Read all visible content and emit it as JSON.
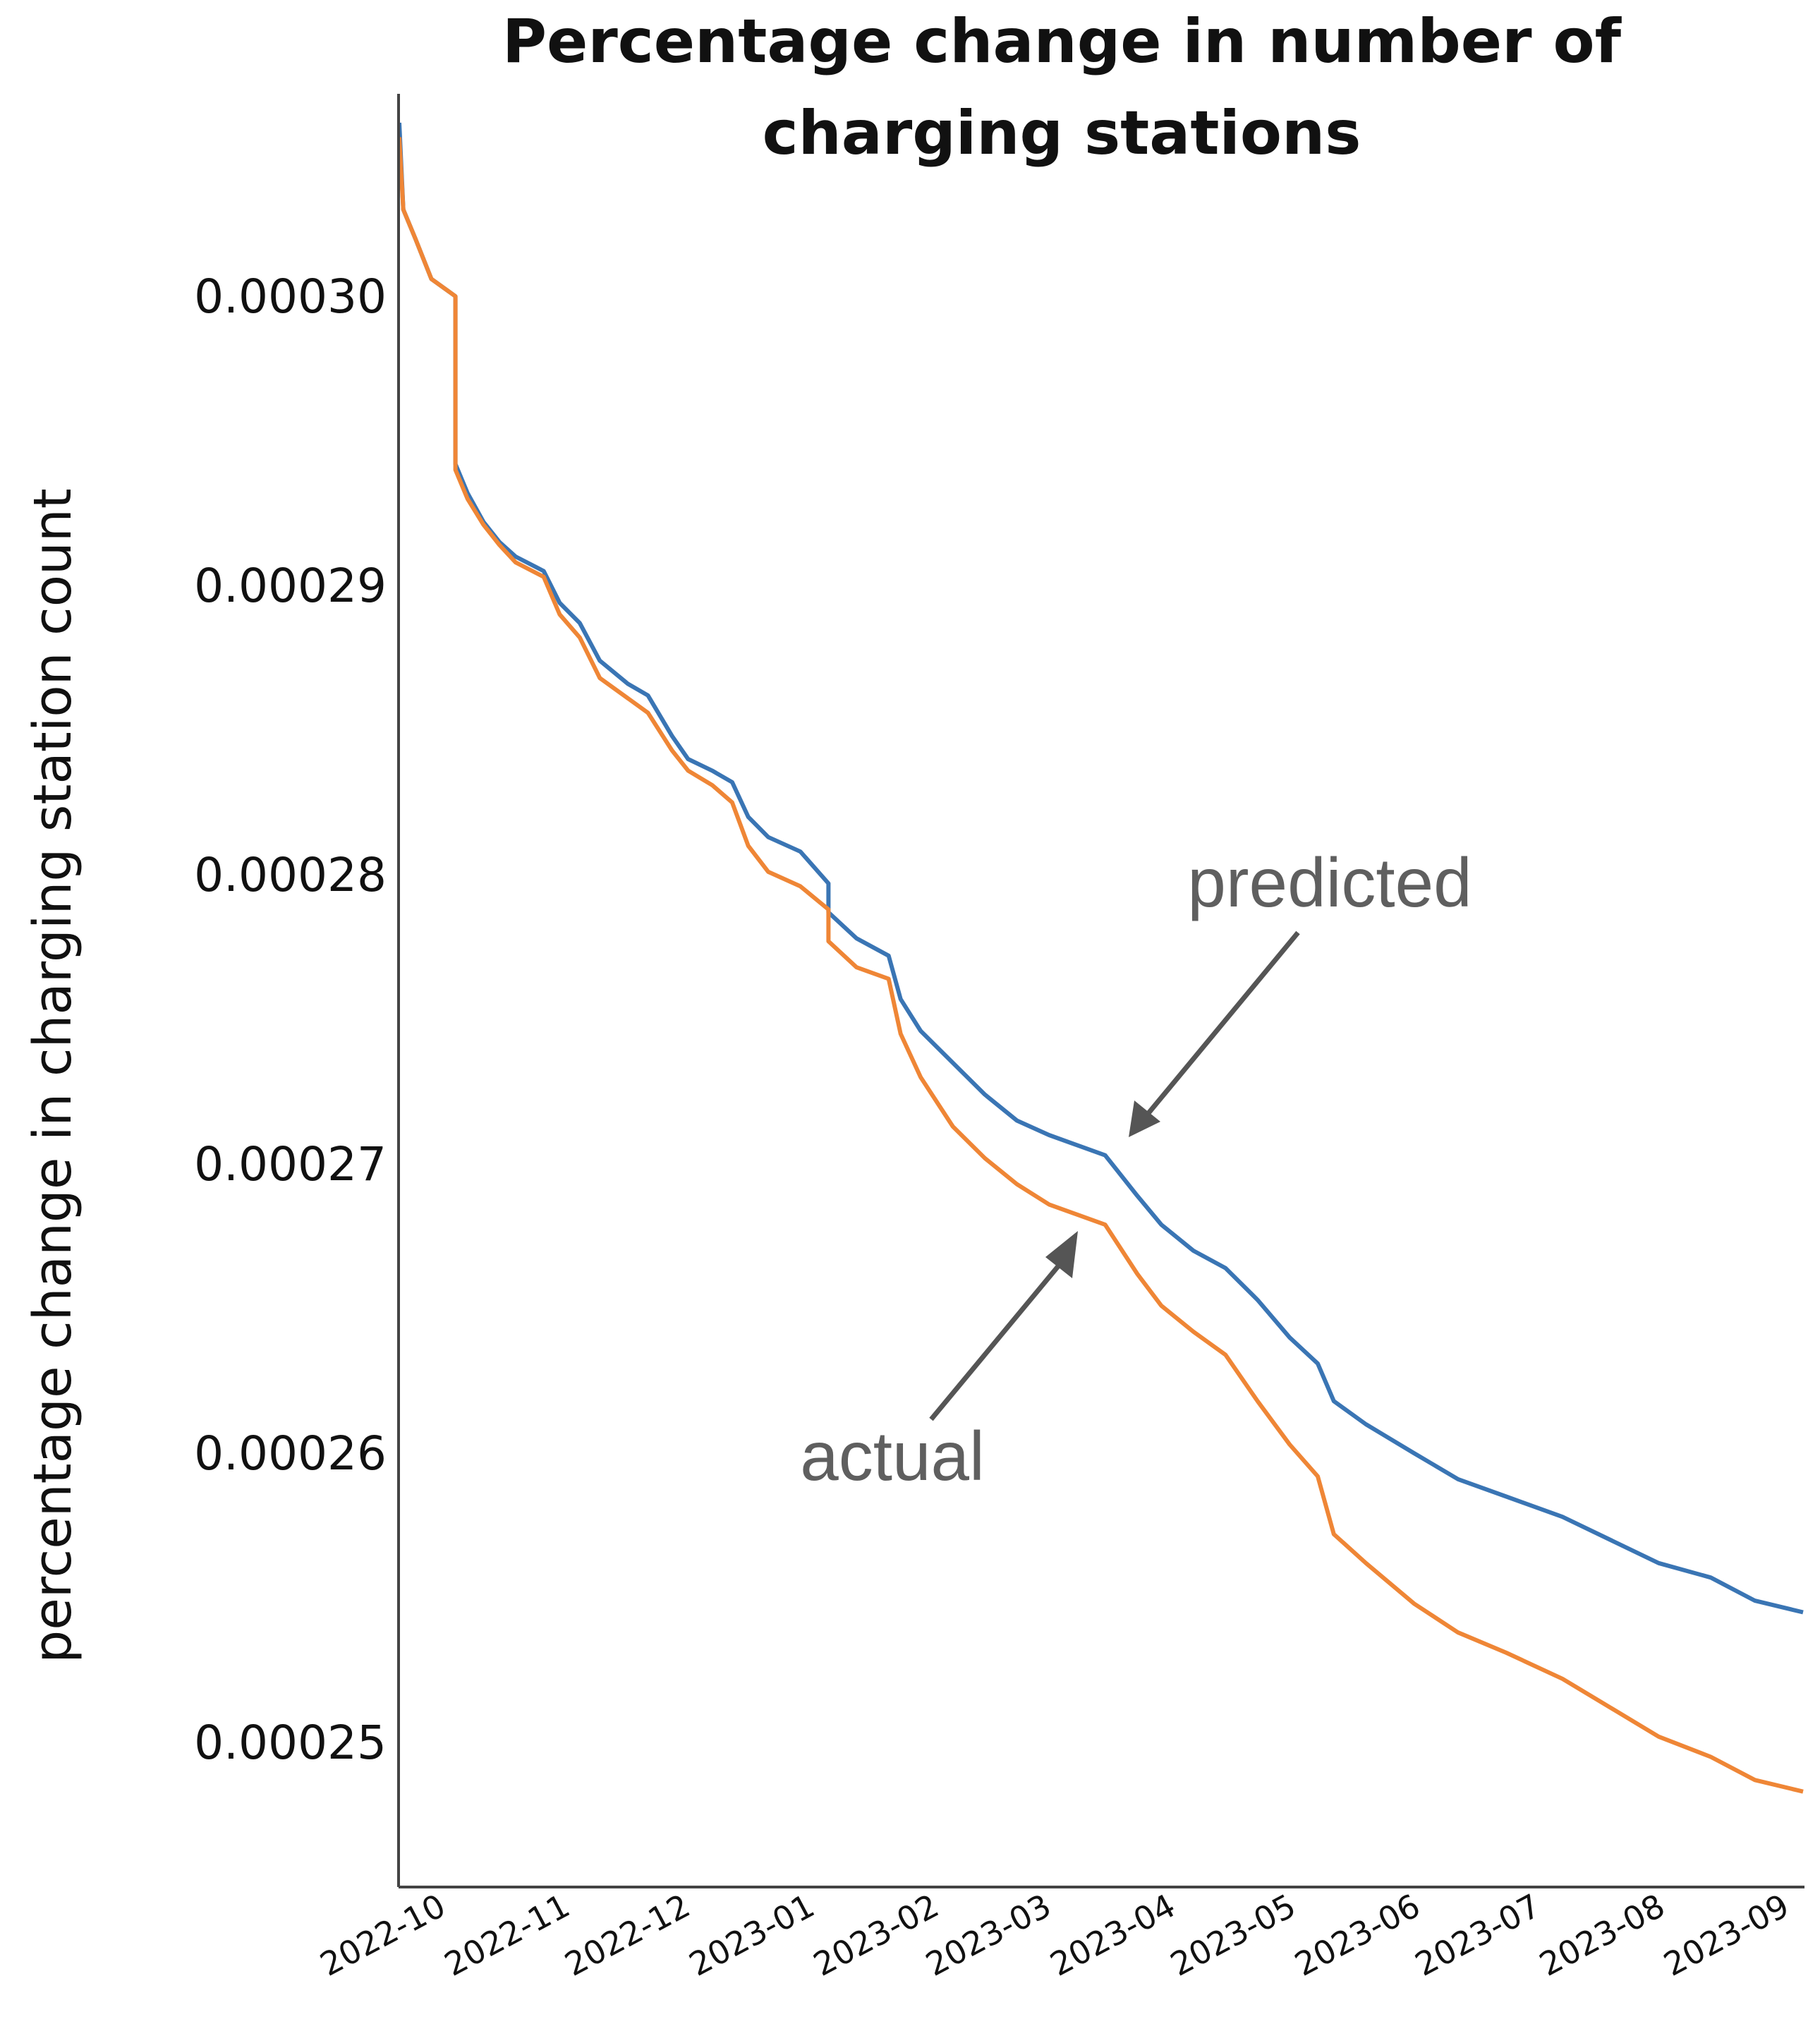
{
  "chart_data": {
    "type": "line",
    "title_lines": [
      "Percentage change in number of",
      "charging stations"
    ],
    "xlabel": "",
    "ylabel": "percentage change in charging station count",
    "x_ticks": [
      "2022-10",
      "2022-11",
      "2022-12",
      "2023-01",
      "2023-02",
      "2023-03",
      "2023-04",
      "2023-05",
      "2023-06",
      "2023-07",
      "2023-08",
      "2023-09"
    ],
    "y_ticks": [
      "0.00025",
      "0.00026",
      "0.00027",
      "0.00028",
      "0.00029",
      "0.00030"
    ],
    "ylim": [
      0.000245,
      0.000307
    ],
    "xlim": [
      "2022-09-21",
      "2023-09-06"
    ],
    "grid": false,
    "colors": {
      "predicted": "#3a75b4",
      "actual": "#ef8636",
      "axis": "#444444",
      "annotation": "#5f5f5f"
    },
    "annotations": [
      {
        "text": "predicted",
        "series": "predicted",
        "points_to": [
          "2023-03-16",
          0.00027
        ]
      },
      {
        "text": "actual",
        "series": "actual",
        "points_to": [
          "2023-03-02",
          0.000268
        ]
      }
    ],
    "series": [
      {
        "name": "predicted",
        "points": [
          [
            "2022-09-21",
            0.000306
          ],
          [
            "2022-09-22",
            0.000303
          ],
          [
            "2022-09-25",
            0.000302
          ],
          [
            "2022-09-29",
            0.0003006
          ],
          [
            "2022-10-05",
            0.0003
          ],
          [
            "2022-10-05",
            0.0002942
          ],
          [
            "2022-10-08",
            0.0002932
          ],
          [
            "2022-10-12",
            0.0002922
          ],
          [
            "2022-10-16",
            0.0002915
          ],
          [
            "2022-10-20",
            0.000291
          ],
          [
            "2022-10-27",
            0.0002905
          ],
          [
            "2022-10-31",
            0.0002894
          ],
          [
            "2022-11-05",
            0.0002887
          ],
          [
            "2022-11-10",
            0.0002874
          ],
          [
            "2022-11-17",
            0.0002866
          ],
          [
            "2022-11-22",
            0.0002862
          ],
          [
            "2022-11-28",
            0.0002848
          ],
          [
            "2022-12-02",
            0.000284
          ],
          [
            "2022-12-08",
            0.0002836
          ],
          [
            "2022-12-13",
            0.0002832
          ],
          [
            "2022-12-17",
            0.000282
          ],
          [
            "2022-12-22",
            0.0002813
          ],
          [
            "2022-12-30",
            0.0002808
          ],
          [
            "2023-01-06",
            0.0002797
          ],
          [
            "2023-01-06",
            0.0002787
          ],
          [
            "2023-01-13",
            0.0002778
          ],
          [
            "2023-01-21",
            0.0002772
          ],
          [
            "2023-01-24",
            0.0002757
          ],
          [
            "2023-01-29",
            0.0002746
          ],
          [
            "2023-02-06",
            0.0002735
          ],
          [
            "2023-02-14",
            0.0002724
          ],
          [
            "2023-02-22",
            0.0002715
          ],
          [
            "2023-03-02",
            0.000271
          ],
          [
            "2023-03-16",
            0.0002703
          ],
          [
            "2023-03-24",
            0.0002689
          ],
          [
            "2023-03-30",
            0.0002679
          ],
          [
            "2023-04-07",
            0.000267
          ],
          [
            "2023-04-15",
            0.0002664
          ],
          [
            "2023-04-23",
            0.0002653
          ],
          [
            "2023-05-01",
            0.000264
          ],
          [
            "2023-05-08",
            0.0002631
          ],
          [
            "2023-05-12",
            0.0002618
          ],
          [
            "2023-05-20",
            0.000261
          ],
          [
            "2023-06-01",
            0.00026
          ],
          [
            "2023-06-12",
            0.0002591
          ],
          [
            "2023-06-24",
            0.0002585
          ],
          [
            "2023-07-08",
            0.0002578
          ],
          [
            "2023-07-20",
            0.000257
          ],
          [
            "2023-08-01",
            0.0002562
          ],
          [
            "2023-08-14",
            0.0002557
          ],
          [
            "2023-08-25",
            0.0002549
          ],
          [
            "2023-09-06",
            0.0002545
          ]
        ]
      },
      {
        "name": "actual",
        "points": [
          [
            "2022-09-21",
            0.0003055
          ],
          [
            "2022-09-22",
            0.000303
          ],
          [
            "2022-09-25",
            0.000302
          ],
          [
            "2022-09-29",
            0.0003006
          ],
          [
            "2022-10-05",
            0.0003
          ],
          [
            "2022-10-05",
            0.000294
          ],
          [
            "2022-10-08",
            0.000293
          ],
          [
            "2022-10-12",
            0.0002921
          ],
          [
            "2022-10-16",
            0.0002914
          ],
          [
            "2022-10-20",
            0.0002908
          ],
          [
            "2022-10-27",
            0.0002903
          ],
          [
            "2022-10-31",
            0.000289
          ],
          [
            "2022-11-05",
            0.0002882
          ],
          [
            "2022-11-10",
            0.0002868
          ],
          [
            "2022-11-17",
            0.0002861
          ],
          [
            "2022-11-22",
            0.0002856
          ],
          [
            "2022-11-28",
            0.0002843
          ],
          [
            "2022-12-02",
            0.0002836
          ],
          [
            "2022-12-08",
            0.0002831
          ],
          [
            "2022-12-13",
            0.0002825
          ],
          [
            "2022-12-17",
            0.000281
          ],
          [
            "2022-12-22",
            0.0002801
          ],
          [
            "2022-12-30",
            0.0002796
          ],
          [
            "2023-01-06",
            0.0002788
          ],
          [
            "2023-01-06",
            0.0002777
          ],
          [
            "2023-01-13",
            0.0002768
          ],
          [
            "2023-01-21",
            0.0002764
          ],
          [
            "2023-01-24",
            0.0002745
          ],
          [
            "2023-01-29",
            0.000273
          ],
          [
            "2023-02-06",
            0.0002713
          ],
          [
            "2023-02-14",
            0.0002702
          ],
          [
            "2023-02-22",
            0.0002693
          ],
          [
            "2023-03-02",
            0.0002686
          ],
          [
            "2023-03-16",
            0.0002679
          ],
          [
            "2023-03-24",
            0.0002662
          ],
          [
            "2023-03-30",
            0.0002651
          ],
          [
            "2023-04-07",
            0.0002642
          ],
          [
            "2023-04-15",
            0.0002634
          ],
          [
            "2023-04-23",
            0.0002618
          ],
          [
            "2023-05-01",
            0.0002603
          ],
          [
            "2023-05-08",
            0.0002592
          ],
          [
            "2023-05-12",
            0.0002572
          ],
          [
            "2023-05-20",
            0.0002562
          ],
          [
            "2023-06-01",
            0.0002548
          ],
          [
            "2023-06-12",
            0.0002538
          ],
          [
            "2023-06-24",
            0.0002531
          ],
          [
            "2023-07-08",
            0.0002522
          ],
          [
            "2023-07-20",
            0.0002512
          ],
          [
            "2023-08-01",
            0.0002502
          ],
          [
            "2023-08-14",
            0.0002495
          ],
          [
            "2023-08-25",
            0.0002487
          ],
          [
            "2023-09-06",
            0.0002483
          ]
        ]
      }
    ]
  }
}
